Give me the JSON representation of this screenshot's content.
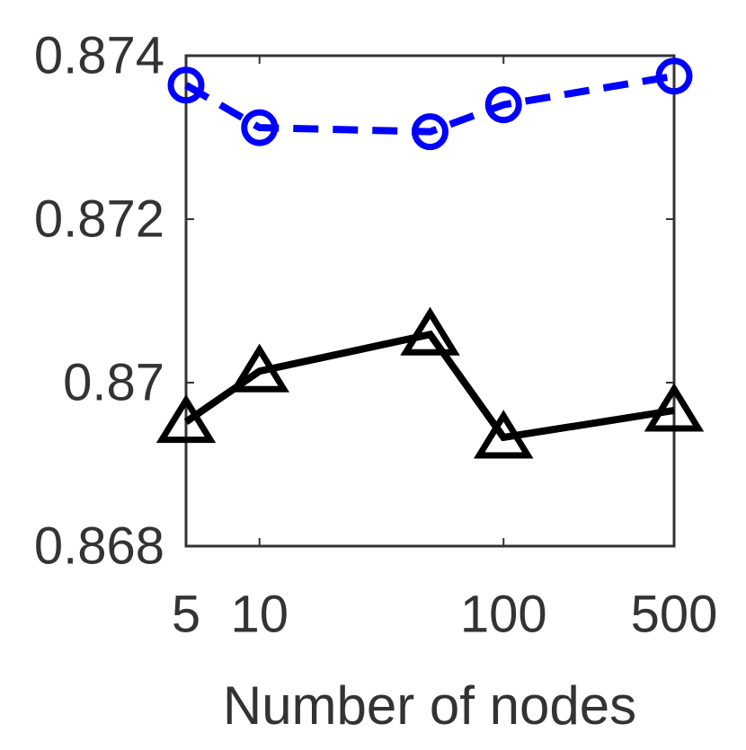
{
  "chart_data": {
    "type": "line",
    "x_label": "Number of nodes",
    "x_scale": "log",
    "xlim": [
      5,
      500
    ],
    "xticks": [
      5,
      10,
      100,
      500
    ],
    "ylim": [
      0.868,
      0.874
    ],
    "yticks": [
      0.868,
      0.87,
      0.872,
      0.874
    ],
    "grid": false,
    "x": [
      5,
      10,
      50,
      100,
      500
    ],
    "series": [
      {
        "color": "#0000ff",
        "marker": "circle",
        "dash": "dashed",
        "values": [
          0.87364,
          0.87312,
          0.87307,
          0.8734,
          0.87375
        ]
      },
      {
        "color": "#000000",
        "marker": "triangle",
        "dash": "solid",
        "values": [
          0.86952,
          0.87014,
          0.87059,
          0.86933,
          0.86966
        ]
      }
    ]
  }
}
